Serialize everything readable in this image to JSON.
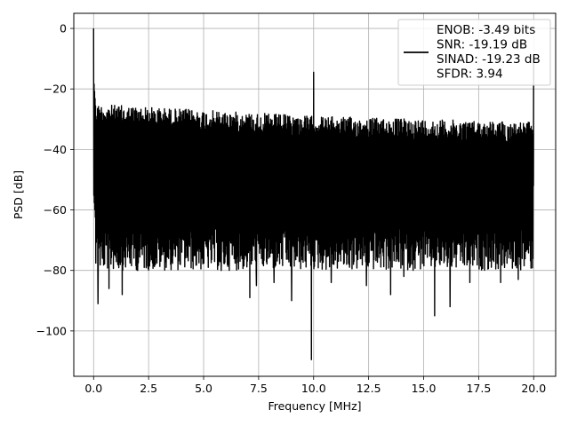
{
  "chart_data": {
    "type": "line",
    "title": "",
    "xlabel": "Frequency [MHz]",
    "ylabel": "PSD [dB]",
    "xlim": [
      -0.9,
      21.0
    ],
    "ylim": [
      -115,
      5
    ],
    "xticks": [
      0.0,
      2.5,
      5.0,
      7.5,
      10.0,
      12.5,
      15.0,
      17.5,
      20.0
    ],
    "xtick_labels": [
      "0.0",
      "2.5",
      "5.0",
      "7.5",
      "10.0",
      "12.5",
      "15.0",
      "17.5",
      "20.0"
    ],
    "yticks": [
      0,
      -20,
      -40,
      -60,
      -80,
      -100
    ],
    "ytick_labels": [
      "0",
      "−20",
      "−40",
      "−60",
      "−80",
      "−100"
    ],
    "grid": true,
    "line_color": "#000000",
    "series": [
      {
        "color": "#000000",
        "features": {
          "x_range": [
            0.0,
            20.0
          ],
          "fundamental": {
            "x": 0.0,
            "y": 0.0
          },
          "spur_mid": {
            "x": 10.0,
            "y": -14.5
          },
          "spur_end": {
            "x": 20.0,
            "y": -10.0
          },
          "notch_mid": {
            "x": 9.9,
            "y": -109.5
          },
          "noise_upper_envelope": [
            [
              0.1,
              -25
            ],
            [
              5.0,
              -27
            ],
            [
              10.0,
              -29
            ],
            [
              15.0,
              -30
            ],
            [
              19.9,
              -31
            ]
          ],
          "noise_lower_typical": -72,
          "deep_dips": [
            {
              "x": 0.2,
              "y": -91
            },
            {
              "x": 0.4,
              "y": -76
            },
            {
              "x": 0.7,
              "y": -86
            },
            {
              "x": 1.3,
              "y": -88
            },
            {
              "x": 2.0,
              "y": -80
            },
            {
              "x": 3.5,
              "y": -78
            },
            {
              "x": 5.8,
              "y": -80
            },
            {
              "x": 7.1,
              "y": -89
            },
            {
              "x": 7.4,
              "y": -85
            },
            {
              "x": 8.2,
              "y": -84
            },
            {
              "x": 9.0,
              "y": -90
            },
            {
              "x": 10.8,
              "y": -84
            },
            {
              "x": 12.4,
              "y": -85
            },
            {
              "x": 13.5,
              "y": -88
            },
            {
              "x": 14.1,
              "y": -82
            },
            {
              "x": 15.5,
              "y": -95
            },
            {
              "x": 16.2,
              "y": -92
            },
            {
              "x": 17.1,
              "y": -84
            },
            {
              "x": 18.5,
              "y": -84
            },
            {
              "x": 19.3,
              "y": -83
            }
          ]
        }
      }
    ],
    "legend": {
      "placement": "upper-right",
      "entries": [
        "ENOB: -3.49 bits",
        "SNR: -19.19 dB",
        "SINAD: -19.23 dB",
        "SFDR: 3.94"
      ]
    }
  }
}
